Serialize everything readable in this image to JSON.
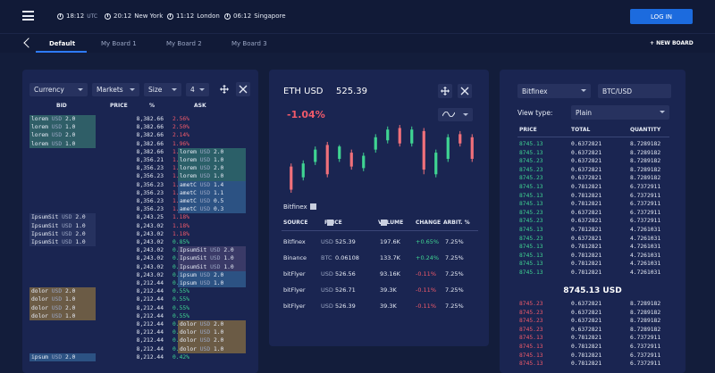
{
  "topbar": {
    "clocks": [
      {
        "time": "18:12",
        "zone": "UTC"
      },
      {
        "time": "20:12",
        "zone": "New York"
      },
      {
        "time": "11:12",
        "zone": "London"
      },
      {
        "time": "06:12",
        "zone": "Singapore"
      }
    ],
    "login_label": "LOG IN"
  },
  "tabs": {
    "items": [
      "Default",
      "My Board 1",
      "My Board 2",
      "My Board 3"
    ],
    "new_board_label": "+ NEW BOARD"
  },
  "orderbook": {
    "currency_label": "Currency",
    "markets_label": "Markets",
    "size_label": "Size",
    "depth_value": "4",
    "headers": {
      "bid": "BID",
      "price": "PRICE",
      "pct": "%",
      "ask": "ASK"
    },
    "rows": [
      {
        "price": "8,382.66",
        "pct": "2.56%",
        "bid": [
          "lorem",
          "2.0"
        ],
        "ask": null
      },
      {
        "price": "8,382.66",
        "pct": "2.50%",
        "bid": [
          "lorem",
          "1.0"
        ],
        "ask": null
      },
      {
        "price": "8,382.66",
        "pct": "2.14%",
        "bid": [
          "lorem",
          "2.0"
        ],
        "ask": null
      },
      {
        "price": "8,382.66",
        "pct": "1.96%",
        "bid": [
          "lorem",
          "1.0"
        ],
        "ask": null
      },
      {
        "price": "8,382.66",
        "pct": "1.96%",
        "bid": null,
        "ask": [
          "lorem",
          "2.0"
        ]
      },
      {
        "price": "8,356.21",
        "pct": "1.96%",
        "bid": null,
        "ask": [
          "lorem",
          "1.0"
        ]
      },
      {
        "price": "8,356.23",
        "pct": "1.96%",
        "bid": null,
        "ask": [
          "lorem",
          "2.0"
        ]
      },
      {
        "price": "8,356.23",
        "pct": "1.96%",
        "bid": null,
        "ask": [
          "lorem",
          "1.0"
        ]
      },
      {
        "price": "8,356.23",
        "pct": "1.96%",
        "bid": null,
        "ask": [
          "ametC",
          "1.4"
        ]
      },
      {
        "price": "8,356.23",
        "pct": "1.96%",
        "bid": null,
        "ask": [
          "ametC",
          "1.1"
        ]
      },
      {
        "price": "8,356.23",
        "pct": "1.18%",
        "bid": null,
        "ask": [
          "ametC",
          "0.5"
        ]
      },
      {
        "price": "8,356.23",
        "pct": "1.18%",
        "bid": null,
        "ask": [
          "ametC",
          "0.3"
        ]
      },
      {
        "price": "8,243.25",
        "pct": "1.18%",
        "bid": [
          "IpsumSit",
          "2.0"
        ],
        "ask": null
      },
      {
        "price": "8,243.02",
        "pct": "1.18%",
        "bid": [
          "IpsumSit",
          "1.0"
        ],
        "ask": null
      },
      {
        "price": "8,243.02",
        "pct": "1.18%",
        "bid": [
          "IpsumSit",
          "2.0"
        ],
        "ask": null
      },
      {
        "price": "8,243.02",
        "pct": "0.85%",
        "bid": [
          "IpsumSit",
          "1.0"
        ],
        "ask": null
      },
      {
        "price": "8,243.02",
        "pct": "0.85%",
        "bid": null,
        "ask": [
          "IpsumSit",
          "2.0"
        ]
      },
      {
        "price": "8,243.02",
        "pct": "0.85%",
        "bid": null,
        "ask": [
          "IpsumSit",
          "1.0"
        ]
      },
      {
        "price": "8,243.02",
        "pct": "0.85%",
        "bid": null,
        "ask": [
          "IpsumSit",
          "1.0"
        ]
      },
      {
        "price": "8,243.02",
        "pct": "0.85%",
        "bid": null,
        "ask": [
          "ipsum",
          "2.0"
        ]
      },
      {
        "price": "8,212.44",
        "pct": "0.85%",
        "bid": null,
        "ask": [
          "ipsum",
          "1.0"
        ]
      },
      {
        "price": "8,212.44",
        "pct": "0.55%",
        "bid": [
          "dolor",
          "2.0"
        ],
        "ask": null
      },
      {
        "price": "8,212.44",
        "pct": "0.55%",
        "bid": [
          "dolor",
          "1.0"
        ],
        "ask": null
      },
      {
        "price": "8,212.44",
        "pct": "0.55%",
        "bid": [
          "dolor",
          "2.0"
        ],
        "ask": null
      },
      {
        "price": "8,212.44",
        "pct": "0.55%",
        "bid": [
          "dolor",
          "1.0"
        ],
        "ask": null
      },
      {
        "price": "8,212.44",
        "pct": "0.42%",
        "bid": null,
        "ask": [
          "dolor",
          "2.0"
        ]
      },
      {
        "price": "8,212.44",
        "pct": "0.42%",
        "bid": null,
        "ask": [
          "dolor",
          "1.0"
        ]
      },
      {
        "price": "8,212.44",
        "pct": "0.42%",
        "bid": null,
        "ask": [
          "dolor",
          "2.0"
        ]
      },
      {
        "price": "8,212.44",
        "pct": "0.42%",
        "bid": null,
        "ask": [
          "dolor",
          "1.0"
        ]
      },
      {
        "price": "8,212.44",
        "pct": "0.42%",
        "bid": [
          "ipsum",
          "2.0"
        ],
        "ask": null
      }
    ],
    "unit": "USD"
  },
  "chart": {
    "pair": "ETH USD",
    "price": "525.39",
    "change": "-1.04%",
    "exchange_label": "Bitfinex",
    "candles": [
      {
        "o": 505,
        "c": 490,
        "h": 507,
        "l": 488,
        "up": false
      },
      {
        "o": 498,
        "c": 507,
        "h": 509,
        "l": 496,
        "up": true
      },
      {
        "o": 508,
        "c": 516,
        "h": 518,
        "l": 506,
        "up": true
      },
      {
        "o": 519,
        "c": 500,
        "h": 521,
        "l": 498,
        "up": false
      },
      {
        "o": 510,
        "c": 518,
        "h": 519,
        "l": 508,
        "up": true
      },
      {
        "o": 514,
        "c": 505,
        "h": 516,
        "l": 503,
        "up": false
      },
      {
        "o": 504,
        "c": 512,
        "h": 514,
        "l": 502,
        "up": true
      },
      {
        "o": 516,
        "c": 524,
        "h": 526,
        "l": 514,
        "up": true
      },
      {
        "o": 522,
        "c": 529,
        "h": 531,
        "l": 520,
        "up": true
      },
      {
        "o": 530,
        "c": 520,
        "h": 532,
        "l": 518,
        "up": false
      },
      {
        "o": 520,
        "c": 529,
        "h": 531,
        "l": 518,
        "up": true
      },
      {
        "o": 528,
        "c": 503,
        "h": 530,
        "l": 500,
        "up": false
      },
      {
        "o": 500,
        "c": 514,
        "h": 516,
        "l": 498,
        "up": true
      },
      {
        "o": 510,
        "c": 524,
        "h": 526,
        "l": 508,
        "up": true
      },
      {
        "o": 526,
        "c": 520,
        "h": 528,
        "l": 518,
        "up": false
      },
      {
        "o": 524,
        "c": 510,
        "h": 526,
        "l": 508,
        "up": false
      }
    ],
    "colors": {
      "up": "#3fd492",
      "down": "#f0707a"
    },
    "sources_headers": {
      "source": "SOURCE",
      "price": "PRICE",
      "volume": "VOLUME",
      "change": "CHANGE",
      "arbit": "ARBIT. %"
    },
    "sources": [
      {
        "name": "Bitfinex",
        "unit": "USD",
        "price": "525.39",
        "volume": "197.6K",
        "change": "+0.65%",
        "arbit": "7.25%",
        "up": true
      },
      {
        "name": "Binance",
        "unit": "BTC",
        "price": "0.06108",
        "volume": "133.7K",
        "change": "+0.24%",
        "arbit": "7.25%",
        "up": true
      },
      {
        "name": "bitFlyer",
        "unit": "USD",
        "price": "526.56",
        "volume": "93.16K",
        "change": "-0.11%",
        "arbit": "7.25%",
        "up": false
      },
      {
        "name": "bitFlyer",
        "unit": "USD",
        "price": "526.71",
        "volume": "39.3K",
        "change": "-0.11%",
        "arbit": "7.25%",
        "up": false
      },
      {
        "name": "bitFlyer",
        "unit": "USD",
        "price": "526.39",
        "volume": "39.3K",
        "change": "-0.11%",
        "arbit": "7.25%",
        "up": false
      }
    ]
  },
  "ticker": {
    "exchange": "Bitfinex",
    "pair": "BTC/USD",
    "view_type_label": "View type:",
    "view_type_value": "Plain",
    "headers": {
      "price": "PRICE",
      "total": "TOTAL",
      "quantity": "QUANTITY"
    },
    "top_rows": [
      {
        "p": "8745.13",
        "t": "0.6372821",
        "q": "8.7289182",
        "c": "g"
      },
      {
        "p": "8745.13",
        "t": "0.6372821",
        "q": "8.7289182",
        "c": "g"
      },
      {
        "p": "8745.23",
        "t": "0.6372821",
        "q": "8.7289182",
        "c": "g"
      },
      {
        "p": "8745.23",
        "t": "0.6372821",
        "q": "8.7289182",
        "c": "g"
      },
      {
        "p": "8745.23",
        "t": "0.6372821",
        "q": "8.7289182",
        "c": "g"
      },
      {
        "p": "8745.13",
        "t": "0.7812821",
        "q": "6.7372911",
        "c": "g"
      },
      {
        "p": "8745.13",
        "t": "0.7812821",
        "q": "6.7372911",
        "c": "g"
      },
      {
        "p": "8745.13",
        "t": "0.7812821",
        "q": "6.7372911",
        "c": "g"
      },
      {
        "p": "8745.23",
        "t": "0.6372821",
        "q": "6.7372911",
        "c": "g"
      },
      {
        "p": "8745.23",
        "t": "0.6372821",
        "q": "6.7372911",
        "c": "g"
      },
      {
        "p": "8745.13",
        "t": "0.7812821",
        "q": "4.7261031",
        "c": "g"
      },
      {
        "p": "8745.23",
        "t": "0.6372821",
        "q": "4.7261031",
        "c": "g"
      },
      {
        "p": "8745.13",
        "t": "0.7812821",
        "q": "4.7261031",
        "c": "g"
      },
      {
        "p": "8745.13",
        "t": "0.7812821",
        "q": "4.7261031",
        "c": "g"
      },
      {
        "p": "8745.13",
        "t": "0.7812821",
        "q": "4.7261031",
        "c": "g"
      },
      {
        "p": "8745.13",
        "t": "0.7812821",
        "q": "4.7261031",
        "c": "g"
      }
    ],
    "mid_price": "8745.13 USD",
    "bottom_rows": [
      {
        "p": "8745.23",
        "t": "0.6372821",
        "q": "8.7289182",
        "c": "r"
      },
      {
        "p": "8745.23",
        "t": "0.6372821",
        "q": "8.7289182",
        "c": "r"
      },
      {
        "p": "8745.23",
        "t": "0.6372821",
        "q": "8.7289182",
        "c": "r"
      },
      {
        "p": "8745.23",
        "t": "0.6372821",
        "q": "8.7289182",
        "c": "r"
      },
      {
        "p": "8745.13",
        "t": "0.7812821",
        "q": "6.7372911",
        "c": "r"
      },
      {
        "p": "8745.13",
        "t": "0.7812821",
        "q": "6.7372911",
        "c": "r"
      },
      {
        "p": "8745.13",
        "t": "0.7812821",
        "q": "6.7372911",
        "c": "r"
      },
      {
        "p": "8745.13",
        "t": "0.7812821",
        "q": "6.7372911",
        "c": "r"
      }
    ]
  }
}
